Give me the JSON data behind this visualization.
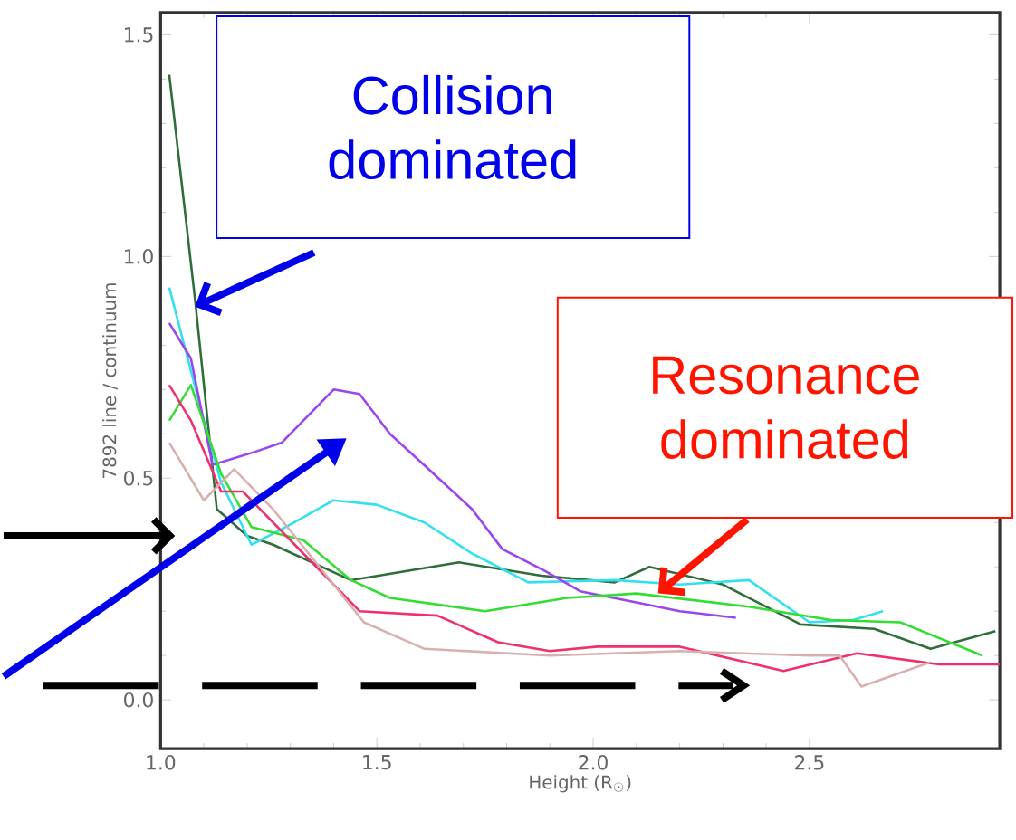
{
  "chart_data": {
    "type": "line",
    "xlabel": "Height (R$_{☉}$)",
    "ylabel": "7892 line / continuum",
    "xlim": [
      1.0,
      2.94
    ],
    "ylim": [
      -0.11,
      1.55
    ],
    "xticks": [
      {
        "value": 1.0,
        "label": "1.0"
      },
      {
        "value": 1.5,
        "label": "1.5"
      },
      {
        "value": 2.0,
        "label": "2.0"
      },
      {
        "value": 2.5,
        "label": "2.5"
      }
    ],
    "yticks": [
      {
        "value": 0.0,
        "label": "0.0"
      },
      {
        "value": 0.5,
        "label": "0.5"
      },
      {
        "value": 1.0,
        "label": "1.0"
      },
      {
        "value": 1.5,
        "label": "1.5"
      }
    ],
    "grid": false,
    "annotations": [
      "Collision dominated",
      {
        "text": "Resonance dominated",
        "x": 2.15,
        "y": 0.24
      }
    ],
    "series": [
      {
        "color": "#2f6e3a",
        "x": [
          1.02,
          1.08,
          1.13,
          1.2,
          1.26,
          1.44,
          1.69,
          1.88,
          2.05,
          2.13,
          2.3,
          2.48,
          2.65,
          2.78,
          2.93
        ],
        "values": [
          1.41,
          0.9,
          0.43,
          0.37,
          0.35,
          0.27,
          0.31,
          0.28,
          0.265,
          0.3,
          0.26,
          0.17,
          0.16,
          0.115,
          0.155
        ]
      },
      {
        "color": "#33e0f0",
        "x": [
          1.02,
          1.1,
          1.14,
          1.21,
          1.29,
          1.4,
          1.5,
          1.61,
          1.72,
          1.85,
          2.05,
          2.2,
          2.36,
          2.5,
          2.6,
          2.67
        ],
        "values": [
          0.93,
          0.63,
          0.49,
          0.35,
          0.39,
          0.45,
          0.44,
          0.4,
          0.33,
          0.265,
          0.27,
          0.26,
          0.27,
          0.175,
          0.18,
          0.2
        ]
      },
      {
        "color": "#9a45f0",
        "x": [
          1.02,
          1.07,
          1.12,
          1.22,
          1.28,
          1.4,
          1.46,
          1.53,
          1.62,
          1.72,
          1.79,
          1.89,
          1.97,
          2.1,
          2.2,
          2.33
        ],
        "values": [
          0.85,
          0.77,
          0.53,
          0.56,
          0.58,
          0.7,
          0.69,
          0.6,
          0.52,
          0.43,
          0.34,
          0.29,
          0.245,
          0.22,
          0.2,
          0.185
        ]
      },
      {
        "color": "#33dd33",
        "x": [
          1.02,
          1.07,
          1.14,
          1.21,
          1.33,
          1.44,
          1.53,
          1.75,
          1.94,
          2.1,
          2.36,
          2.55,
          2.71,
          2.9
        ],
        "values": [
          0.63,
          0.71,
          0.51,
          0.39,
          0.36,
          0.27,
          0.23,
          0.2,
          0.23,
          0.24,
          0.21,
          0.18,
          0.175,
          0.1
        ]
      },
      {
        "color": "#f0306a",
        "x": [
          1.02,
          1.07,
          1.14,
          1.19,
          1.33,
          1.46,
          1.64,
          1.78,
          1.9,
          2.01,
          2.2,
          2.44,
          2.61,
          2.8,
          2.94
        ],
        "values": [
          0.71,
          0.63,
          0.47,
          0.47,
          0.33,
          0.2,
          0.19,
          0.13,
          0.11,
          0.12,
          0.12,
          0.065,
          0.105,
          0.08,
          0.08
        ]
      },
      {
        "color": "#d8b0b0",
        "x": [
          1.02,
          1.1,
          1.17,
          1.26,
          1.47,
          1.61,
          1.9,
          2.2,
          2.5,
          2.57,
          2.62,
          2.78
        ],
        "values": [
          0.58,
          0.45,
          0.52,
          0.43,
          0.175,
          0.115,
          0.1,
          0.11,
          0.1,
          0.1,
          0.03,
          0.085
        ]
      }
    ]
  }
}
